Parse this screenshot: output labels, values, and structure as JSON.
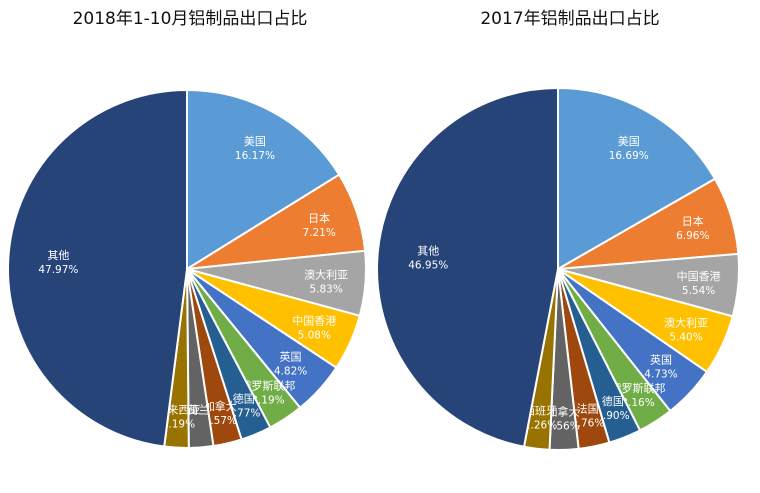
{
  "chart_data": [
    {
      "type": "pie",
      "title": "2018年1-10月铝制品出口占比",
      "slices": [
        {
          "label": "美国",
          "value": 16.17,
          "text": "16.17%",
          "color": "#5b9bd5"
        },
        {
          "label": "日本",
          "value": 7.21,
          "text": "7.21%",
          "color": "#ed7d31"
        },
        {
          "label": "澳大利亚",
          "value": 5.83,
          "text": "5.83%",
          "color": "#a5a5a5"
        },
        {
          "label": "中国香港",
          "value": 5.08,
          "text": "5.08%",
          "color": "#ffc000"
        },
        {
          "label": "英国",
          "value": 4.82,
          "text": "4.82%",
          "color": "#4472c4"
        },
        {
          "label": "俄罗斯联邦",
          "value": 3.19,
          "text": "3.19%",
          "color": "#70ad47"
        },
        {
          "label": "德国",
          "value": 2.77,
          "text": "2.77%",
          "color": "#255e91"
        },
        {
          "label": "加拿大",
          "value": 2.57,
          "text": "2.57%",
          "color": "#9e480e"
        },
        {
          "label": "荷兰",
          "value": 2.2,
          "text": "",
          "color": "#636363"
        },
        {
          "label": "马来西亚",
          "value": 2.19,
          "text": "2.19%",
          "color": "#997300"
        },
        {
          "label": "其他",
          "value": 47.97,
          "text": "47.97%",
          "color": "#264478"
        }
      ]
    },
    {
      "type": "pie",
      "title": "2017年铝制品出口占比",
      "slices": [
        {
          "label": "美国",
          "value": 16.69,
          "text": "16.69%",
          "color": "#5b9bd5"
        },
        {
          "label": "日本",
          "value": 6.96,
          "text": "6.96%",
          "color": "#ed7d31"
        },
        {
          "label": "中国香港",
          "value": 5.54,
          "text": "5.54%",
          "color": "#a5a5a5"
        },
        {
          "label": "澳大利亚",
          "value": 5.4,
          "text": "5.40%",
          "color": "#ffc000"
        },
        {
          "label": "英国",
          "value": 4.73,
          "text": "4.73%",
          "color": "#4472c4"
        },
        {
          "label": "俄罗斯联邦",
          "value": 3.16,
          "text": "3.16%",
          "color": "#70ad47"
        },
        {
          "label": "德国",
          "value": 2.9,
          "text": "2.90%",
          "color": "#255e91"
        },
        {
          "label": "法国",
          "value": 2.76,
          "text": "2.76%",
          "color": "#9e480e"
        },
        {
          "label": "加拿大",
          "value": 2.56,
          "text": "2.56%",
          "color": "#636363"
        },
        {
          "label": "西班牙",
          "value": 2.26,
          "text": "2.26%",
          "color": "#997300"
        },
        {
          "label": "其他",
          "value": 46.95,
          "text": "46.95%",
          "color": "#264478"
        }
      ]
    }
  ]
}
